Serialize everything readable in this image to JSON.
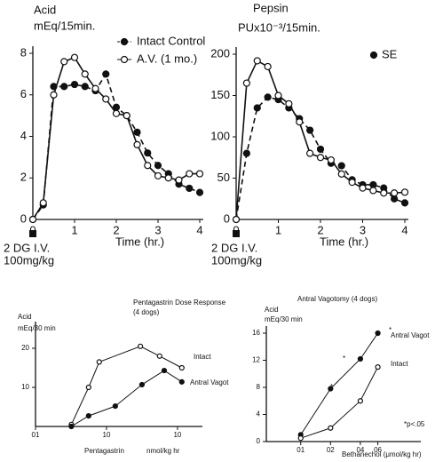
{
  "chart_data": [
    {
      "type": "line",
      "y_label": [
        "Acid",
        "mEq/15min."
      ],
      "xlabel": "Time (hr.)",
      "annotations": [
        "2 DG I.V.",
        "100mg/kg"
      ],
      "x": [
        0,
        0.25,
        0.5,
        0.75,
        1,
        1.25,
        1.5,
        1.75,
        2,
        2.25,
        2.5,
        2.75,
        3,
        3.25,
        3.5,
        3.75,
        4
      ],
      "xlim": [
        0,
        4
      ],
      "ylim": [
        0,
        8
      ],
      "xticks": [
        0,
        1,
        2,
        3,
        4
      ],
      "yticks": [
        0,
        2,
        4,
        6,
        8
      ],
      "series": [
        {
          "name": "Intact Control",
          "color": "#111111",
          "marker": "filled",
          "dashed": true,
          "values": [
            0,
            0.7,
            6.4,
            6.4,
            6.5,
            6.4,
            6.2,
            7.0,
            5.4,
            5.0,
            4.2,
            3.2,
            2.6,
            2.2,
            1.7,
            1.5,
            1.3
          ]
        },
        {
          "name": "A.V. (1 mo.)",
          "color": "#111111",
          "marker": "open",
          "dashed": false,
          "values": [
            0,
            0.8,
            6.0,
            7.6,
            7.8,
            7.0,
            6.3,
            5.8,
            5.1,
            5.0,
            3.6,
            2.6,
            2.1,
            2.0,
            1.9,
            2.2,
            2.2
          ]
        }
      ]
    },
    {
      "type": "line",
      "y_label": [
        "Pepsin",
        "PUx10⁻³/15min."
      ],
      "xlabel": "Time (hr.)",
      "annotations": [
        "2 DG I.V.",
        "100mg/kg"
      ],
      "legend_note": "SE",
      "x": [
        0,
        0.25,
        0.5,
        0.75,
        1,
        1.25,
        1.5,
        1.75,
        2,
        2.25,
        2.5,
        2.75,
        3,
        3.25,
        3.5,
        3.75,
        4
      ],
      "xlim": [
        0,
        4
      ],
      "ylim": [
        0,
        200
      ],
      "xticks": [
        0,
        1,
        2,
        3,
        4
      ],
      "yticks": [
        0,
        50,
        100,
        150,
        200
      ],
      "series": [
        {
          "color": "#111111",
          "marker": "filled",
          "dashed": true,
          "values": [
            0,
            80,
            135,
            148,
            145,
            135,
            122,
            108,
            85,
            68,
            65,
            48,
            42,
            42,
            38,
            25,
            20
          ]
        },
        {
          "color": "#111111",
          "marker": "open",
          "dashed": false,
          "values": [
            0,
            165,
            192,
            185,
            150,
            140,
            118,
            80,
            75,
            72,
            55,
            45,
            38,
            35,
            32,
            32,
            33
          ]
        }
      ]
    },
    {
      "type": "line",
      "title": [
        "Pentagastrin Dose Response",
        "(4 dogs)"
      ],
      "y_label": [
        "Acid",
        "mEq/30 min"
      ],
      "xlabel": [
        "Pentagastrin",
        "nmol/kg hr"
      ],
      "xscale": "log",
      "xlim": [
        0.1,
        20
      ],
      "ylim": [
        0,
        25
      ],
      "xticks": [
        {
          "value": 0.1,
          "label": "01"
        },
        {
          "value": 1,
          "label": "10"
        },
        {
          "value": 10,
          "label": "10"
        }
      ],
      "yticks": [
        10,
        20
      ],
      "series": [
        {
          "name": "Intact",
          "color": "#111111",
          "marker": "open",
          "dashed": false,
          "x": [
            0.32,
            0.56,
            0.79,
            3,
            5.6,
            11.5
          ],
          "values": [
            0.5,
            10,
            16.5,
            20.5,
            18,
            15
          ]
        },
        {
          "name": "Antral Vagot",
          "color": "#111111",
          "marker": "filled",
          "dashed": false,
          "x": [
            0.32,
            0.56,
            1.33,
            3.16,
            6.5,
            11.5
          ],
          "values": [
            0,
            2.7,
            5.2,
            10.7,
            14.3,
            11.4
          ]
        }
      ]
    },
    {
      "type": "line",
      "title": [
        "Antral Vagotomy (4 dogs)"
      ],
      "y_label": [
        "Acid",
        "mEq/30 min"
      ],
      "xlabel": [
        "Bethanechol (μmol/kg hr)"
      ],
      "annotations": [
        "*",
        "*",
        "*",
        "*p<.05"
      ],
      "xscale": "log",
      "xlim": [
        0.045,
        1.5
      ],
      "ylim": [
        0,
        16
      ],
      "xticks": [
        {
          "value": 0.1,
          "label": "01"
        },
        {
          "value": 0.2,
          "label": "02"
        },
        {
          "value": 0.4,
          "label": "04"
        },
        {
          "value": 0.6,
          "label": "06"
        }
      ],
      "yticks": [
        0,
        4,
        8,
        12,
        16
      ],
      "series": [
        {
          "name": "Antral Vagot",
          "color": "#111111",
          "marker": "filled",
          "dashed": false,
          "x": [
            0.1,
            0.2,
            0.4,
            0.6
          ],
          "values": [
            1,
            7.8,
            12.2,
            16
          ]
        },
        {
          "name": "Intact",
          "color": "#111111",
          "marker": "open",
          "dashed": false,
          "x": [
            0.1,
            0.2,
            0.4,
            0.6
          ],
          "values": [
            0.5,
            2,
            6,
            11
          ]
        }
      ]
    }
  ]
}
